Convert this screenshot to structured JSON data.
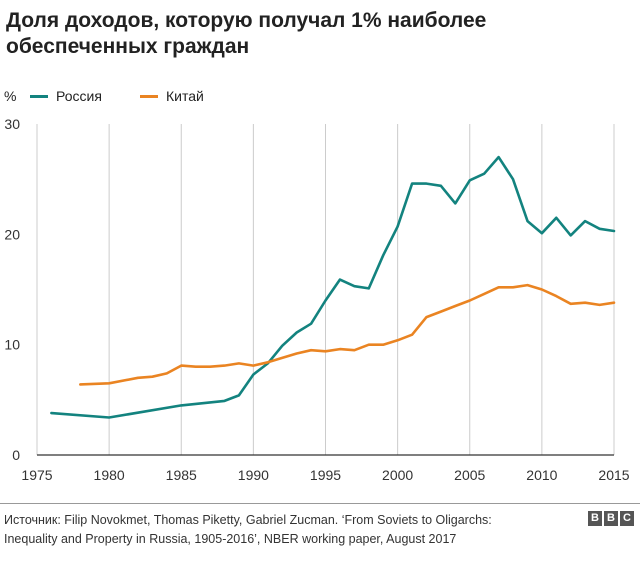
{
  "title_line1": "Доля доходов, которую получал 1% наиболее",
  "title_line2": "обеспеченных граждан",
  "legend": {
    "unit": "%",
    "items": [
      {
        "label": "Россия",
        "color": "#13837f"
      },
      {
        "label": "Китай",
        "color": "#ea8422"
      }
    ]
  },
  "source_line1": "Источник: Filip Novokmet, Thomas Piketty, Gabriel Zucman. ‘From Soviets to Oligarchs:",
  "source_line2": "Inequality and Property in Russia, 1905-2016’, NBER working paper, August 2017",
  "logo": [
    "B",
    "B",
    "C"
  ],
  "chart_data": {
    "type": "line",
    "title": "Доля доходов, которую получал 1% наиболее обеспеченных граждан",
    "xlabel": "",
    "ylabel": "%",
    "xlim": [
      1975,
      2015
    ],
    "ylim": [
      0,
      30
    ],
    "x_ticks": [
      "1975",
      "1980",
      "1985",
      "1990",
      "1995",
      "2000",
      "2005",
      "2010",
      "2015"
    ],
    "y_ticks": [
      "0",
      "10",
      "20",
      "30"
    ],
    "grid": "vertical",
    "legend_position": "top-left",
    "series": [
      {
        "name": "Россия",
        "color": "#13837f",
        "x": [
          1976,
          1980,
          1985,
          1988,
          1989,
          1990,
          1991,
          1992,
          1993,
          1994,
          1995,
          1996,
          1997,
          1998,
          1999,
          2000,
          2001,
          2002,
          2003,
          2004,
          2005,
          2006,
          2007,
          2008,
          2009,
          2010,
          2011,
          2012,
          2013,
          2014,
          2015
        ],
        "y": [
          3.8,
          3.4,
          4.5,
          4.9,
          5.4,
          7.3,
          8.3,
          9.9,
          11.1,
          11.9,
          14.0,
          15.9,
          15.3,
          15.1,
          18.1,
          20.7,
          24.6,
          24.6,
          24.4,
          22.8,
          24.9,
          25.5,
          27.0,
          25.0,
          21.2,
          20.1,
          21.5,
          19.9,
          21.2,
          20.5,
          20.3
        ]
      },
      {
        "name": "Китай",
        "color": "#ea8422",
        "x": [
          1978,
          1980,
          1982,
          1983,
          1984,
          1985,
          1986,
          1987,
          1988,
          1989,
          1990,
          1991,
          1992,
          1993,
          1994,
          1995,
          1996,
          1997,
          1998,
          1999,
          2000,
          2001,
          2002,
          2003,
          2004,
          2005,
          2006,
          2007,
          2008,
          2009,
          2010,
          2011,
          2012,
          2013,
          2014,
          2015
        ],
        "y": [
          6.4,
          6.5,
          7.0,
          7.1,
          7.4,
          8.1,
          8.0,
          8.0,
          8.1,
          8.3,
          8.1,
          8.4,
          8.8,
          9.2,
          9.5,
          9.4,
          9.6,
          9.5,
          10.0,
          10.0,
          10.4,
          10.9,
          12.5,
          13.0,
          13.5,
          14.0,
          14.6,
          15.2,
          15.2,
          15.4,
          15.0,
          14.4,
          13.7,
          13.8,
          13.6,
          13.8
        ]
      }
    ]
  }
}
